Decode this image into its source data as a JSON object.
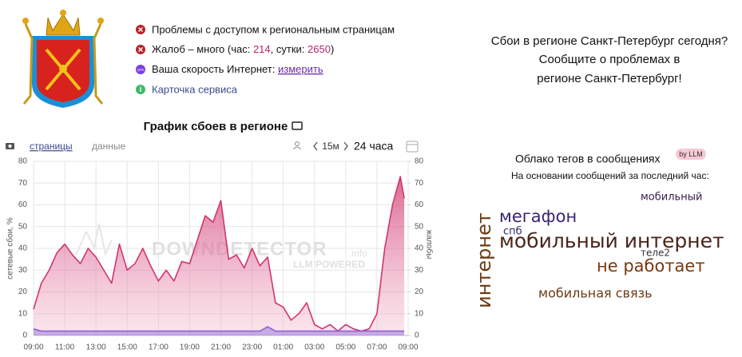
{
  "status": {
    "access_problems": "Проблемы с доступом к региональным страницам",
    "complaints_prefix": "Жалоб – много (час: ",
    "complaints_hour": 214,
    "complaints_mid": ", сутки: ",
    "complaints_day": 2650,
    "complaints_suffix": ")",
    "speed_icon": "QMS",
    "speed_label": "Ваша скорость Интернет: ",
    "speed_link": "измерить",
    "info_icon": "i",
    "service_card": "Карточка сервиса"
  },
  "promo": {
    "lines": [
      "Сбои в регионе Санкт-Петербург сегодня?",
      "Сообщите о проблемах в",
      "регионе Санкт-Петербург!"
    ]
  },
  "tabs": {
    "pages": "страницы",
    "data": "данные",
    "interval": "15м",
    "period": "24 часа"
  },
  "watermark": {
    "brand": "DOWNDETECTOR",
    "domain": ".info",
    "powered": "LLM POWERED"
  },
  "chart_data": {
    "type": "area",
    "title": "График сбоев в регионе",
    "ylabel": "сетевые сбои, %",
    "y2label": "жалобы",
    "x": [
      0,
      0.5,
      1,
      1.5,
      2,
      2.5,
      3,
      3.5,
      4,
      4.5,
      5,
      5.5,
      6,
      6.5,
      7,
      7.5,
      8,
      8.5,
      9,
      9.5,
      10,
      10.5,
      11,
      11.5,
      12,
      12.5,
      13,
      13.5,
      14,
      14.5,
      15,
      15.5,
      16,
      16.5,
      17,
      17.5,
      18,
      18.5,
      19,
      19.5,
      20,
      20.5,
      21,
      21.5,
      22,
      22.5,
      23,
      23.5,
      23.75
    ],
    "xlim": [
      0,
      24
    ],
    "xticks": [
      {
        "value": 0,
        "label": "09:00"
      },
      {
        "value": 2,
        "label": "11:00"
      },
      {
        "value": 4,
        "label": "13:00"
      },
      {
        "value": 6,
        "label": "15:00"
      },
      {
        "value": 8,
        "label": "17:00"
      },
      {
        "value": 10,
        "label": "19:00"
      },
      {
        "value": 12,
        "label": "21:00"
      },
      {
        "value": 14,
        "label": "23:00"
      },
      {
        "value": 16,
        "label": "01:00"
      },
      {
        "value": 18,
        "label": "03:00"
      },
      {
        "value": 20,
        "label": "05:00"
      },
      {
        "value": 22,
        "label": "07:00"
      },
      {
        "value": 24,
        "label": "09:00"
      }
    ],
    "ylim": [
      0,
      80
    ],
    "yticks": [
      0,
      10,
      20,
      30,
      40,
      50,
      60,
      70,
      80
    ],
    "y2lim": [
      0,
      80
    ],
    "y2ticks": [
      0,
      10,
      20,
      30,
      40,
      50,
      60,
      70,
      80
    ],
    "grid": true,
    "series": [
      {
        "color": "#d0356e",
        "axis": "y2",
        "values": [
          12,
          24,
          30,
          38,
          42,
          37,
          33,
          40,
          36,
          30,
          24,
          42,
          30,
          33,
          40,
          32,
          25,
          30,
          25,
          34,
          33,
          44,
          55,
          52,
          62,
          35,
          37,
          31,
          40,
          32,
          36,
          15,
          13,
          7,
          10,
          15,
          5,
          3,
          5,
          2,
          5,
          3,
          2,
          3,
          10,
          40,
          60,
          73,
          63
        ]
      },
      {
        "color": "#8a63d8",
        "values": [
          3,
          2,
          2,
          2,
          2,
          2,
          2,
          2,
          2,
          2,
          2,
          2,
          2,
          2,
          2,
          2,
          2,
          2,
          2,
          2,
          2,
          2,
          2,
          2,
          2,
          2,
          2,
          2,
          2,
          2,
          4,
          2,
          2,
          2,
          2,
          2,
          2,
          2,
          2,
          2,
          2,
          2,
          2,
          2,
          2,
          2,
          2,
          2,
          2
        ]
      }
    ]
  },
  "tag_cloud": {
    "title": "Облако тегов в сообщениях",
    "badge": "by LLM",
    "subtitle": "На основании сообщений за последний час:",
    "tags": [
      "мобильный",
      "мегафон",
      "спб",
      "мобильный интернет",
      "теле2",
      "не работает",
      "мобильная связь",
      "интернет"
    ]
  }
}
